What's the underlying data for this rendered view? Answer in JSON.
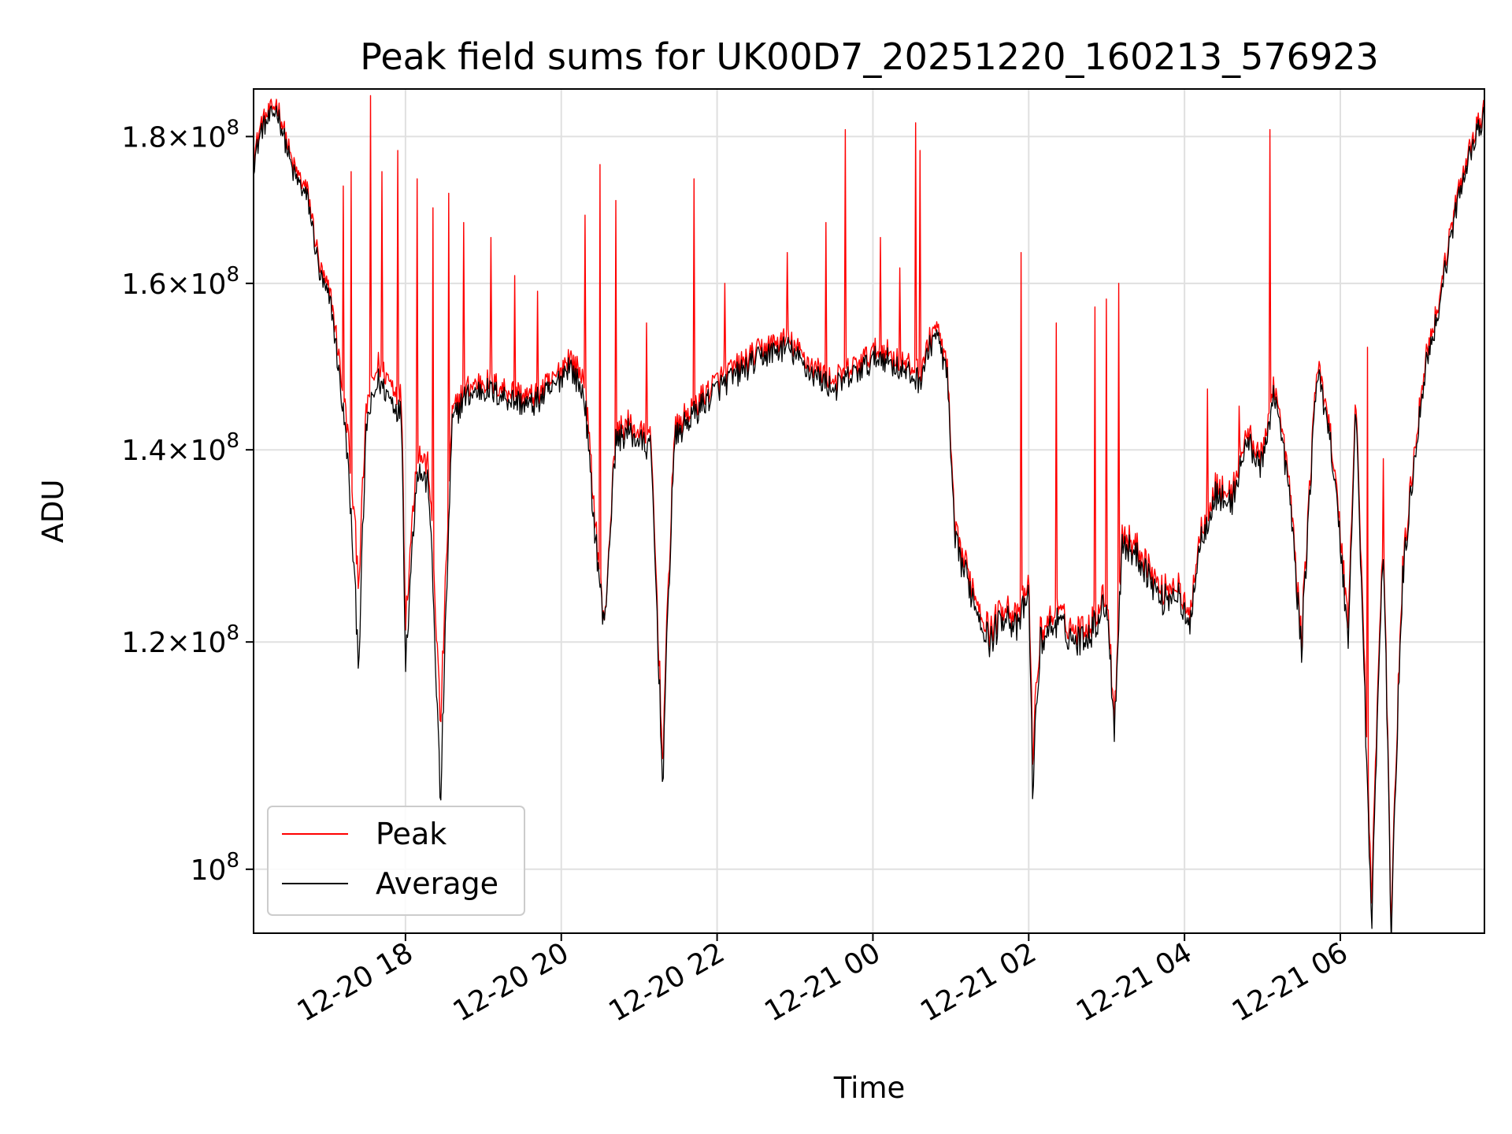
{
  "chart_data": {
    "type": "line",
    "title": "Peak field sums for UK00D7_20251220_160213_576923",
    "xlabel": "Time",
    "ylabel": "ADU",
    "yscale": "log",
    "ylim": [
      95000000,
      187000000
    ],
    "xlim_hours": [
      16.05,
      31.85
    ],
    "grid": true,
    "legend_position": "lower-left",
    "x_ticks": [
      {
        "hours": 18,
        "label": "12-20 18"
      },
      {
        "hours": 20,
        "label": "12-20 20"
      },
      {
        "hours": 22,
        "label": "12-20 22"
      },
      {
        "hours": 24,
        "label": "12-21 00"
      },
      {
        "hours": 26,
        "label": "12-21 02"
      },
      {
        "hours": 28,
        "label": "12-21 04"
      },
      {
        "hours": 30,
        "label": "12-21 06"
      }
    ],
    "y_ticks": [
      {
        "value": 100000000,
        "base": "10",
        "exp": "8",
        "mantissa": ""
      },
      {
        "value": 120000000,
        "base": "10",
        "exp": "8",
        "mantissa": "1.2"
      },
      {
        "value": 140000000,
        "base": "10",
        "exp": "8",
        "mantissa": "1.4"
      },
      {
        "value": 160000000,
        "base": "10",
        "exp": "8",
        "mantissa": "1.6"
      },
      {
        "value": 180000000,
        "base": "10",
        "exp": "8",
        "mantissa": "1.8"
      }
    ],
    "series": [
      {
        "name": "Peak",
        "color": "#ff0000",
        "anchors": [
          [
            16.05,
            177
          ],
          [
            16.15,
            182
          ],
          [
            16.35,
            185
          ],
          [
            16.55,
            176
          ],
          [
            16.75,
            172
          ],
          [
            16.9,
            162
          ],
          [
            17.05,
            158
          ],
          [
            17.25,
            143
          ],
          [
            17.4,
            126
          ],
          [
            17.5,
            145
          ],
          [
            17.65,
            150
          ],
          [
            17.8,
            148
          ],
          [
            17.95,
            146
          ],
          [
            18.0,
            122
          ],
          [
            18.15,
            140
          ],
          [
            18.3,
            138
          ],
          [
            18.45,
            112
          ],
          [
            18.6,
            144
          ],
          [
            18.75,
            147
          ],
          [
            19.0,
            148
          ],
          [
            19.3,
            147
          ],
          [
            19.6,
            146
          ],
          [
            19.9,
            148
          ],
          [
            20.1,
            151
          ],
          [
            20.3,
            148
          ],
          [
            20.4,
            136
          ],
          [
            20.55,
            121
          ],
          [
            20.7,
            142
          ],
          [
            20.85,
            143
          ],
          [
            21.0,
            142
          ],
          [
            21.15,
            141
          ],
          [
            21.3,
            109
          ],
          [
            21.45,
            142
          ],
          [
            21.6,
            144
          ],
          [
            21.8,
            146
          ],
          [
            22.0,
            148
          ],
          [
            22.3,
            150
          ],
          [
            22.6,
            152
          ],
          [
            22.9,
            153
          ],
          [
            23.2,
            150
          ],
          [
            23.5,
            148
          ],
          [
            23.8,
            150
          ],
          [
            24.1,
            152
          ],
          [
            24.4,
            150
          ],
          [
            24.6,
            149
          ],
          [
            24.8,
            155
          ],
          [
            24.95,
            150
          ],
          [
            25.05,
            131
          ],
          [
            25.3,
            125
          ],
          [
            25.5,
            121
          ],
          [
            25.7,
            124
          ],
          [
            25.85,
            122
          ],
          [
            26.0,
            126
          ],
          [
            26.05,
            110
          ],
          [
            26.15,
            121
          ],
          [
            26.35,
            123
          ],
          [
            26.6,
            121
          ],
          [
            26.8,
            122
          ],
          [
            27.0,
            125
          ],
          [
            27.1,
            113
          ],
          [
            27.2,
            131
          ],
          [
            27.45,
            129
          ],
          [
            27.7,
            125
          ],
          [
            27.9,
            126
          ],
          [
            28.05,
            122
          ],
          [
            28.2,
            131
          ],
          [
            28.4,
            136
          ],
          [
            28.6,
            135
          ],
          [
            28.8,
            142
          ],
          [
            29.0,
            139
          ],
          [
            29.15,
            148
          ],
          [
            29.35,
            136
          ],
          [
            29.5,
            120
          ],
          [
            29.7,
            150
          ],
          [
            29.85,
            144
          ],
          [
            30.0,
            131
          ],
          [
            30.1,
            122
          ],
          [
            30.2,
            146
          ],
          [
            30.3,
            120
          ],
          [
            30.4,
            97
          ],
          [
            30.55,
            131
          ],
          [
            30.65,
            96
          ],
          [
            30.8,
            127
          ],
          [
            30.95,
            140
          ],
          [
            31.1,
            151
          ],
          [
            31.25,
            157
          ],
          [
            31.4,
            166
          ],
          [
            31.55,
            174
          ],
          [
            31.7,
            180
          ],
          [
            31.85,
            184
          ]
        ],
        "spikes": [
          [
            17.2,
            173
          ],
          [
            17.3,
            175
          ],
          [
            17.55,
            186
          ],
          [
            17.7,
            175
          ],
          [
            17.9,
            178
          ],
          [
            18.15,
            174
          ],
          [
            18.35,
            170
          ],
          [
            18.55,
            172
          ],
          [
            18.75,
            168
          ],
          [
            19.1,
            166
          ],
          [
            19.4,
            161
          ],
          [
            19.7,
            159
          ],
          [
            20.3,
            169
          ],
          [
            20.5,
            176
          ],
          [
            20.7,
            171
          ],
          [
            21.1,
            155
          ],
          [
            21.7,
            174
          ],
          [
            22.1,
            160
          ],
          [
            22.9,
            164
          ],
          [
            23.4,
            168
          ],
          [
            23.65,
            181
          ],
          [
            24.1,
            166
          ],
          [
            24.35,
            162
          ],
          [
            24.55,
            182
          ],
          [
            24.6,
            178
          ],
          [
            25.9,
            164
          ],
          [
            26.35,
            155
          ],
          [
            26.85,
            157
          ],
          [
            27.0,
            158
          ],
          [
            27.15,
            160
          ],
          [
            28.3,
            147
          ],
          [
            28.7,
            145
          ],
          [
            29.1,
            181
          ],
          [
            30.35,
            152
          ],
          [
            30.55,
            139
          ]
        ]
      },
      {
        "name": "Average",
        "color": "#000000",
        "anchors": [
          [
            16.05,
            176
          ],
          [
            16.15,
            181
          ],
          [
            16.35,
            184
          ],
          [
            16.55,
            175
          ],
          [
            16.75,
            171
          ],
          [
            16.9,
            161
          ],
          [
            17.05,
            157
          ],
          [
            17.25,
            140
          ],
          [
            17.4,
            118
          ],
          [
            17.5,
            143
          ],
          [
            17.65,
            148
          ],
          [
            17.8,
            146
          ],
          [
            17.95,
            144
          ],
          [
            18.0,
            118
          ],
          [
            18.15,
            138
          ],
          [
            18.3,
            136
          ],
          [
            18.45,
            105
          ],
          [
            18.6,
            143
          ],
          [
            18.75,
            146
          ],
          [
            19.0,
            147
          ],
          [
            19.3,
            146
          ],
          [
            19.6,
            145
          ],
          [
            19.9,
            147
          ],
          [
            20.1,
            150
          ],
          [
            20.3,
            146
          ],
          [
            20.4,
            134
          ],
          [
            20.55,
            121
          ],
          [
            20.7,
            141
          ],
          [
            20.85,
            142
          ],
          [
            21.0,
            141
          ],
          [
            21.15,
            140
          ],
          [
            21.3,
            107
          ],
          [
            21.45,
            141
          ],
          [
            21.6,
            143
          ],
          [
            21.8,
            145
          ],
          [
            22.0,
            147
          ],
          [
            22.3,
            149
          ],
          [
            22.6,
            151
          ],
          [
            22.9,
            152
          ],
          [
            23.2,
            149
          ],
          [
            23.5,
            147
          ],
          [
            23.8,
            149
          ],
          [
            24.1,
            151
          ],
          [
            24.4,
            149
          ],
          [
            24.6,
            148
          ],
          [
            24.8,
            154
          ],
          [
            24.95,
            149
          ],
          [
            25.05,
            130
          ],
          [
            25.3,
            124
          ],
          [
            25.5,
            120
          ],
          [
            25.7,
            123
          ],
          [
            25.85,
            121
          ],
          [
            26.0,
            125
          ],
          [
            26.05,
            107
          ],
          [
            26.15,
            120
          ],
          [
            26.35,
            122
          ],
          [
            26.6,
            120
          ],
          [
            26.8,
            121
          ],
          [
            27.0,
            124
          ],
          [
            27.1,
            112
          ],
          [
            27.2,
            130
          ],
          [
            27.45,
            128
          ],
          [
            27.7,
            124
          ],
          [
            27.9,
            125
          ],
          [
            28.05,
            121
          ],
          [
            28.2,
            130
          ],
          [
            28.4,
            135
          ],
          [
            28.6,
            134
          ],
          [
            28.8,
            141
          ],
          [
            29.0,
            138
          ],
          [
            29.15,
            147
          ],
          [
            29.35,
            135
          ],
          [
            29.5,
            119
          ],
          [
            29.7,
            149
          ],
          [
            29.85,
            143
          ],
          [
            30.0,
            130
          ],
          [
            30.1,
            120
          ],
          [
            30.2,
            145
          ],
          [
            30.3,
            118
          ],
          [
            30.4,
            95
          ],
          [
            30.55,
            130
          ],
          [
            30.65,
            95
          ],
          [
            30.8,
            126
          ],
          [
            30.95,
            139
          ],
          [
            31.1,
            150
          ],
          [
            31.25,
            156
          ],
          [
            31.4,
            165
          ],
          [
            31.55,
            173
          ],
          [
            31.7,
            179
          ],
          [
            31.85,
            183
          ]
        ]
      }
    ],
    "value_unit_note": "anchor y-values are ADU in millions (x1e6); x-values are hours since 12-20 00:00"
  }
}
